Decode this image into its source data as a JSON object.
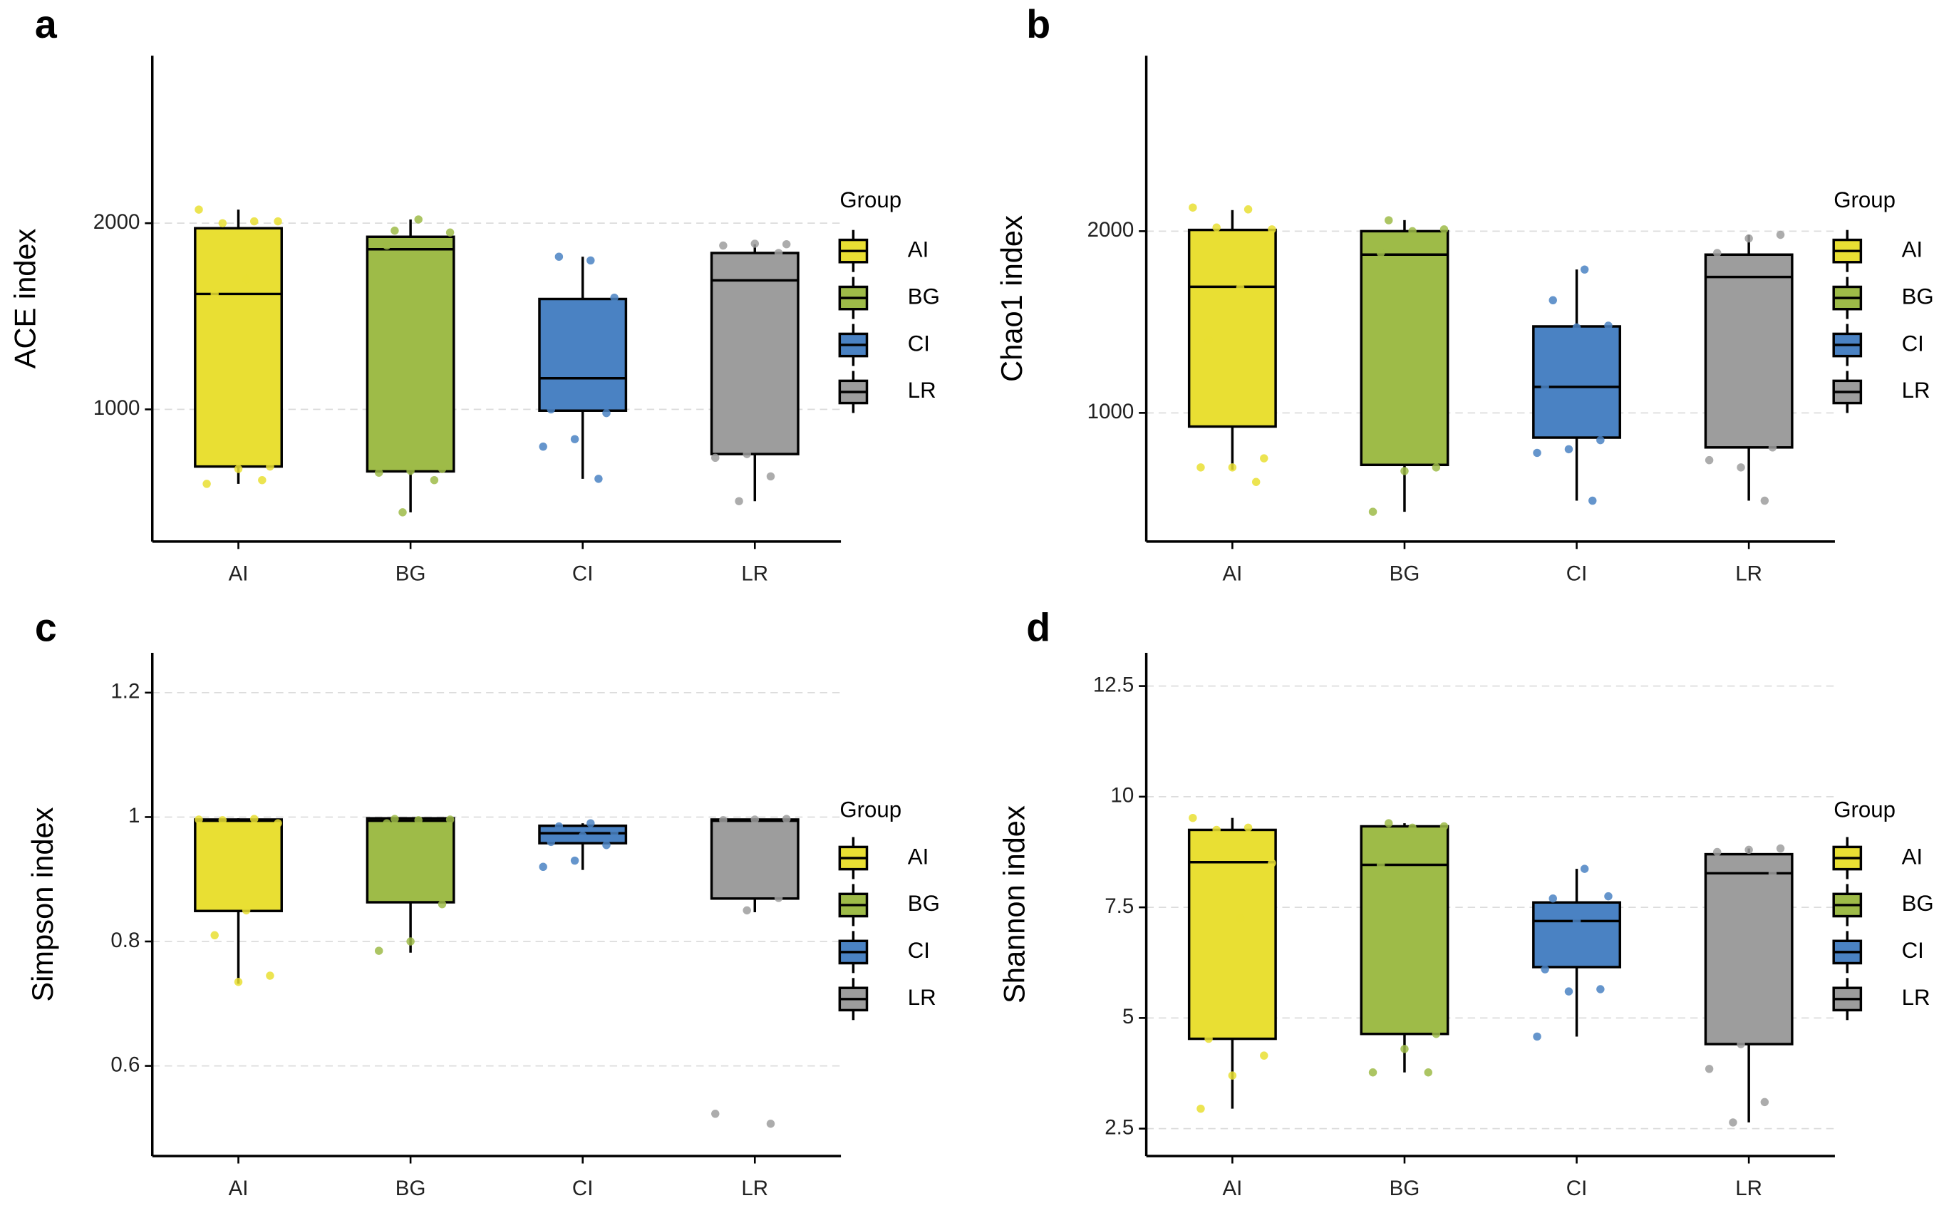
{
  "chart_data": [
    {
      "type": "box",
      "panel": "a",
      "y_label": "ACE index",
      "legend_title": "Group",
      "categories": [
        "AI",
        "BG",
        "CI",
        "LR"
      ],
      "ylim": [
        290,
        2900
      ],
      "yticks": [
        1000,
        2000
      ],
      "grid": true,
      "series": [
        {
          "name": "AI",
          "color": "#e9df33",
          "whisker_low": 600,
          "q1": 693,
          "median": 1620,
          "q3": 1973,
          "whisker_high": 2073,
          "points": [
            2073,
            2010,
            2000,
            2010,
            1700,
            1620,
            693,
            680,
            600,
            620
          ]
        },
        {
          "name": "BG",
          "color": "#9ebb48",
          "whisker_low": 447,
          "q1": 667,
          "median": 1860,
          "q3": 1927,
          "whisker_high": 2020,
          "points": [
            1960,
            1950,
            2020,
            1880,
            680,
            670,
            660,
            620,
            447
          ]
        },
        {
          "name": "CI",
          "color": "#4a82c3",
          "whisker_low": 627,
          "q1": 993,
          "median": 1167,
          "q3": 1593,
          "whisker_high": 1820,
          "points": [
            1800,
            1820,
            1600,
            1200,
            1000,
            980,
            840,
            800,
            627
          ]
        },
        {
          "name": "LR",
          "color": "#9d9d9d",
          "whisker_low": 507,
          "q1": 760,
          "median": 1693,
          "q3": 1840,
          "whisker_high": 1887,
          "points": [
            1887,
            1890,
            1880,
            1840,
            760,
            740,
            640,
            507
          ]
        }
      ]
    },
    {
      "type": "box",
      "panel": "b",
      "y_label": "Chao1 index",
      "legend_title": "Group",
      "categories": [
        "AI",
        "BG",
        "CI",
        "LR"
      ],
      "ylim": [
        292,
        2966
      ],
      "yticks": [
        1000,
        2000
      ],
      "grid": true,
      "series": [
        {
          "name": "AI",
          "color": "#e9df33",
          "whisker_low": 687,
          "q1": 925,
          "median": 1694,
          "q3": 2007,
          "whisker_high": 2116,
          "points": [
            2130,
            2120,
            2020,
            2010,
            1690,
            1400,
            750,
            700,
            700,
            620
          ]
        },
        {
          "name": "BG",
          "color": "#9ebb48",
          "whisker_low": 456,
          "q1": 714,
          "median": 1871,
          "q3": 2000,
          "whisker_high": 2061,
          "points": [
            2060,
            2010,
            2000,
            1880,
            700,
            680,
            456
          ]
        },
        {
          "name": "CI",
          "color": "#4a82c3",
          "whisker_low": 517,
          "q1": 864,
          "median": 1143,
          "q3": 1476,
          "whisker_high": 1789,
          "points": [
            1789,
            1620,
            1480,
            1470,
            1143,
            850,
            800,
            780,
            517
          ]
        },
        {
          "name": "LR",
          "color": "#9d9d9d",
          "whisker_low": 517,
          "q1": 810,
          "median": 1748,
          "q3": 1871,
          "whisker_high": 1980,
          "points": [
            1980,
            1960,
            1880,
            810,
            700,
            740,
            517
          ]
        }
      ]
    },
    {
      "type": "box",
      "panel": "c",
      "y_label": "Simpson index",
      "legend_title": "Group",
      "categories": [
        "AI",
        "BG",
        "CI",
        "LR"
      ],
      "ylim": [
        0.455,
        1.264
      ],
      "yticks": [
        0.6,
        0.8,
        1,
        1.2
      ],
      "grid": true,
      "series": [
        {
          "name": "AI",
          "color": "#e9df33",
          "whisker_low": 0.732,
          "q1": 0.849,
          "median": 0.994,
          "q3": 0.996,
          "whisker_high": 0.998,
          "points": [
            0.996,
            0.997,
            0.995,
            0.99,
            0.85,
            0.81,
            0.745,
            0.735
          ]
        },
        {
          "name": "BG",
          "color": "#9ebb48",
          "whisker_low": 0.782,
          "q1": 0.863,
          "median": 0.994,
          "q3": 0.998,
          "whisker_high": 0.998,
          "points": [
            0.997,
            0.996,
            0.995,
            0.99,
            0.86,
            0.8,
            0.785
          ]
        },
        {
          "name": "CI",
          "color": "#4a82c3",
          "whisker_low": 0.915,
          "q1": 0.958,
          "median": 0.974,
          "q3": 0.986,
          "whisker_high": 0.99,
          "points": [
            0.99,
            0.985,
            0.975,
            0.97,
            0.96,
            0.955,
            0.93,
            0.92
          ]
        },
        {
          "name": "LR",
          "color": "#9d9d9d",
          "whisker_low": 0.847,
          "q1": 0.869,
          "median": 0.994,
          "q3": 0.996,
          "whisker_high": 0.998,
          "points": [
            0.997,
            0.996,
            0.995,
            0.87,
            0.85,
            0.523,
            0.507
          ]
        }
      ]
    },
    {
      "type": "box",
      "panel": "d",
      "y_label": "Shannon index",
      "legend_title": "Group",
      "categories": [
        "AI",
        "BG",
        "CI",
        "LR"
      ],
      "ylim": [
        1.88,
        13.25
      ],
      "yticks": [
        2.5,
        5,
        7.5,
        10,
        12.5
      ],
      "grid": true,
      "series": [
        {
          "name": "AI",
          "color": "#e9df33",
          "whisker_low": 2.95,
          "q1": 4.53,
          "median": 8.52,
          "q3": 9.25,
          "whisker_high": 9.52,
          "points": [
            9.52,
            9.3,
            9.25,
            8.5,
            7.25,
            4.53,
            4.15,
            3.7,
            2.95
          ]
        },
        {
          "name": "BG",
          "color": "#9ebb48",
          "whisker_low": 3.77,
          "q1": 4.64,
          "median": 8.46,
          "q3": 9.33,
          "whisker_high": 9.4,
          "points": [
            9.4,
            9.33,
            9.3,
            8.46,
            4.64,
            4.3,
            3.77,
            3.77
          ]
        },
        {
          "name": "CI",
          "color": "#4a82c3",
          "whisker_low": 4.58,
          "q1": 6.15,
          "median": 7.19,
          "q3": 7.61,
          "whisker_high": 8.37,
          "points": [
            8.37,
            7.7,
            7.75,
            7.19,
            6.1,
            5.65,
            5.6,
            4.58
          ]
        },
        {
          "name": "LR",
          "color": "#9d9d9d",
          "whisker_low": 2.64,
          "q1": 4.41,
          "median": 8.27,
          "q3": 8.7,
          "whisker_high": 8.83,
          "points": [
            8.83,
            8.8,
            8.75,
            8.27,
            4.41,
            3.85,
            3.1,
            2.64
          ]
        }
      ]
    }
  ]
}
